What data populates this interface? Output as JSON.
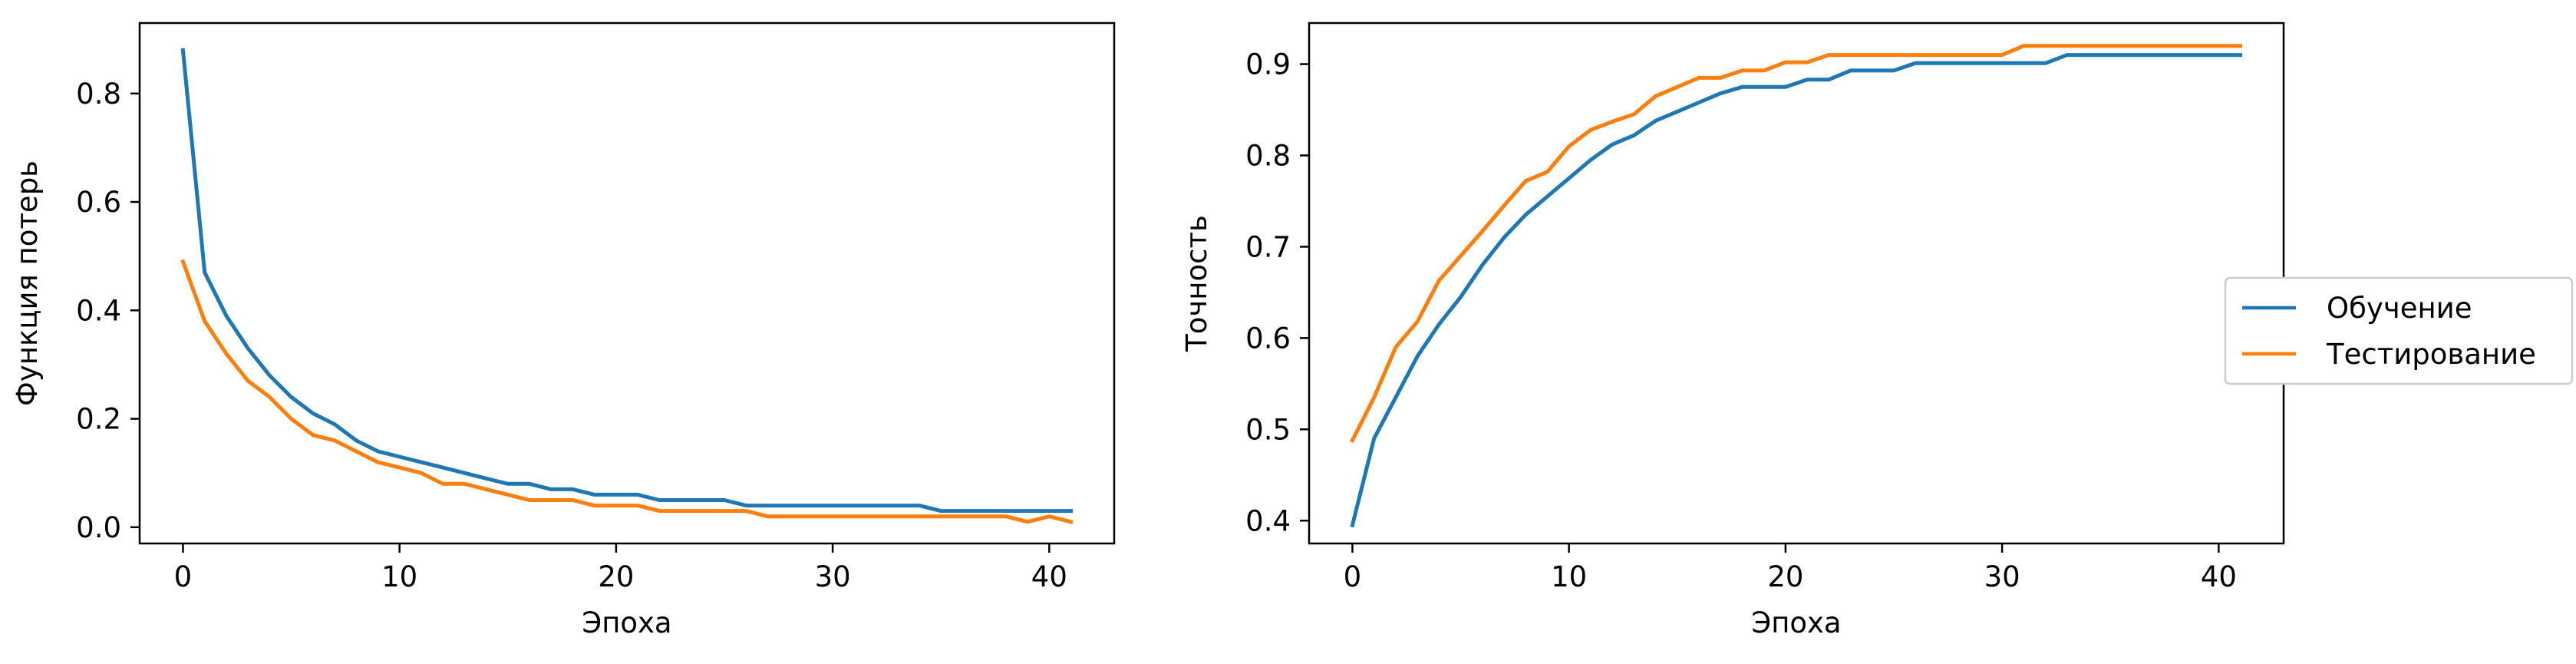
{
  "colors": {
    "train": "#1f77b4",
    "test": "#ff7f0e"
  },
  "legend": {
    "placement": "right",
    "entries": [
      "Обучение",
      "Тестирование"
    ]
  },
  "chart_data": [
    {
      "type": "line",
      "xlabel": "Эпоха",
      "ylabel": "Функция потерь",
      "xlim": [
        -2,
        43
      ],
      "ylim": [
        -0.03,
        0.93
      ],
      "xticks": [
        0,
        10,
        20,
        30,
        40
      ],
      "yticks": [
        0.0,
        0.2,
        0.4,
        0.6,
        0.8
      ],
      "xtick_labels": [
        "0",
        "10",
        "20",
        "30",
        "40"
      ],
      "ytick_labels": [
        "0.0",
        "0.2",
        "0.4",
        "0.6",
        "0.8"
      ],
      "grid": false,
      "x": [
        0,
        1,
        2,
        3,
        4,
        5,
        6,
        7,
        8,
        9,
        10,
        11,
        12,
        13,
        14,
        15,
        16,
        17,
        18,
        19,
        20,
        21,
        22,
        23,
        24,
        25,
        26,
        27,
        28,
        29,
        30,
        31,
        32,
        33,
        34,
        35,
        36,
        37,
        38,
        39,
        40,
        41
      ],
      "series": [
        {
          "name": "Обучение",
          "color_key": "train",
          "values": [
            0.88,
            0.47,
            0.39,
            0.33,
            0.28,
            0.24,
            0.21,
            0.19,
            0.16,
            0.14,
            0.13,
            0.12,
            0.11,
            0.1,
            0.09,
            0.08,
            0.08,
            0.07,
            0.07,
            0.06,
            0.06,
            0.06,
            0.05,
            0.05,
            0.05,
            0.05,
            0.04,
            0.04,
            0.04,
            0.04,
            0.04,
            0.04,
            0.04,
            0.04,
            0.04,
            0.03,
            0.03,
            0.03,
            0.03,
            0.03,
            0.03,
            0.03
          ]
        },
        {
          "name": "Тестирование",
          "color_key": "test",
          "values": [
            0.49,
            0.38,
            0.32,
            0.27,
            0.24,
            0.2,
            0.17,
            0.16,
            0.14,
            0.12,
            0.11,
            0.1,
            0.08,
            0.08,
            0.07,
            0.06,
            0.05,
            0.05,
            0.05,
            0.04,
            0.04,
            0.04,
            0.03,
            0.03,
            0.03,
            0.03,
            0.03,
            0.02,
            0.02,
            0.02,
            0.02,
            0.02,
            0.02,
            0.02,
            0.02,
            0.02,
            0.02,
            0.02,
            0.02,
            0.01,
            0.02,
            0.01
          ]
        }
      ]
    },
    {
      "type": "line",
      "xlabel": "Эпоха",
      "ylabel": "Точность",
      "xlim": [
        -2,
        43
      ],
      "ylim": [
        0.375,
        0.945
      ],
      "xticks": [
        0,
        10,
        20,
        30,
        40
      ],
      "yticks": [
        0.4,
        0.5,
        0.6,
        0.7,
        0.8,
        0.9
      ],
      "xtick_labels": [
        "0",
        "10",
        "20",
        "30",
        "40"
      ],
      "ytick_labels": [
        "0.4",
        "0.5",
        "0.6",
        "0.7",
        "0.8",
        "0.9"
      ],
      "grid": false,
      "x": [
        0,
        1,
        2,
        3,
        4,
        5,
        6,
        7,
        8,
        9,
        10,
        11,
        12,
        13,
        14,
        15,
        16,
        17,
        18,
        19,
        20,
        21,
        22,
        23,
        24,
        25,
        26,
        27,
        28,
        29,
        30,
        31,
        32,
        33,
        34,
        35,
        36,
        37,
        38,
        39,
        40,
        41
      ],
      "series": [
        {
          "name": "Обучение",
          "color_key": "train",
          "values": [
            0.395,
            0.49,
            0.535,
            0.58,
            0.615,
            0.645,
            0.68,
            0.71,
            0.735,
            0.755,
            0.775,
            0.795,
            0.812,
            0.822,
            0.838,
            0.848,
            0.858,
            0.868,
            0.875,
            0.875,
            0.875,
            0.883,
            0.883,
            0.893,
            0.893,
            0.893,
            0.901,
            0.901,
            0.901,
            0.901,
            0.901,
            0.901,
            0.901,
            0.91,
            0.91,
            0.91,
            0.91,
            0.91,
            0.91,
            0.91,
            0.91,
            0.91
          ]
        },
        {
          "name": "Тестирование",
          "color_key": "test",
          "values": [
            0.488,
            0.535,
            0.59,
            0.618,
            0.663,
            0.69,
            0.717,
            0.745,
            0.772,
            0.782,
            0.81,
            0.828,
            0.837,
            0.845,
            0.865,
            0.875,
            0.885,
            0.885,
            0.893,
            0.893,
            0.902,
            0.902,
            0.91,
            0.91,
            0.91,
            0.91,
            0.91,
            0.91,
            0.91,
            0.91,
            0.91,
            0.92,
            0.92,
            0.92,
            0.92,
            0.92,
            0.92,
            0.92,
            0.92,
            0.92,
            0.92,
            0.92
          ]
        }
      ]
    }
  ]
}
